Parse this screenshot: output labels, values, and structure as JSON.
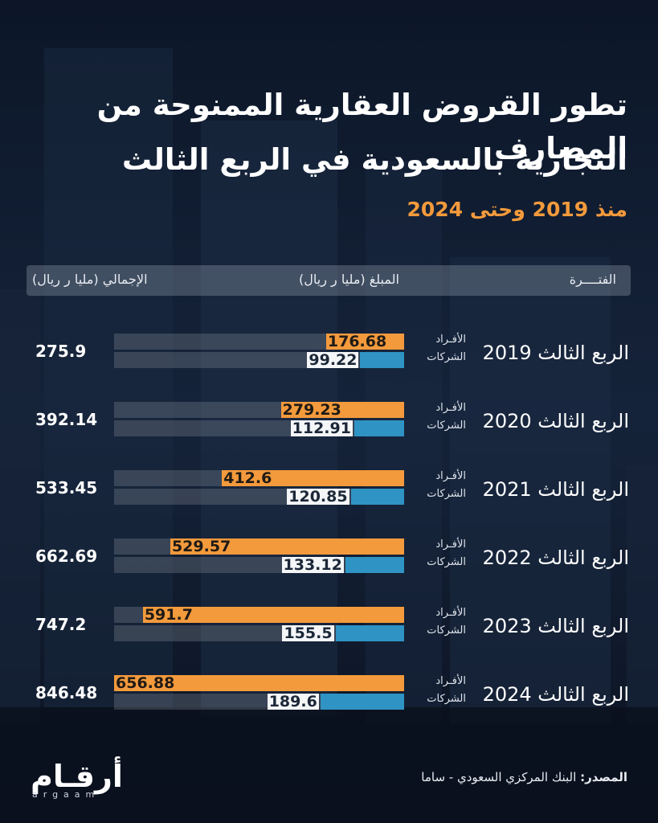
{
  "header": {
    "title_line1": "تطور القروض العقارية الممنوحة من المصارف",
    "title_line2": "التجارية بالسعودية في الربع الثالث",
    "subtitle": "منذ 2019 وحتى 2024"
  },
  "columns": {
    "period": "الفتــــرة",
    "amount": "المبلغ (مليا ر ريال)",
    "total": "الإجمالي (مليا ر ريال)"
  },
  "labels": {
    "individuals": "الأفـراد",
    "companies": "الشركات"
  },
  "rows": [
    {
      "period": "الربع الثالث 2019",
      "individuals": "176.68",
      "companies": "99.22",
      "total": "275.9"
    },
    {
      "period": "الربع الثالث 2020",
      "individuals": "279.23",
      "companies": "112.91",
      "total": "392.14"
    },
    {
      "period": "الربع الثالث 2021",
      "individuals": "412.6",
      "companies": "120.85",
      "total": "533.45"
    },
    {
      "period": "الربع الثالث 2022",
      "individuals": "529.57",
      "companies": "133.12",
      "total": "662.69"
    },
    {
      "period": "الربع الثالث 2023",
      "individuals": "591.7",
      "companies": "155.5",
      "total": "747.2"
    },
    {
      "period": "الربع الثالث 2024",
      "individuals": "656.88",
      "companies": "189.6",
      "total": "846.48"
    }
  ],
  "footer": {
    "source_label": "المصدر:",
    "source_text": "البنك المركزي السعودي - ساما",
    "logo_text": "أرقـام",
    "logo_sub": "argaam"
  },
  "colors": {
    "individuals": "#f39a3c",
    "companies": "#2f93c4",
    "background": "#0f1a2c"
  },
  "chart_data": {
    "type": "bar",
    "orientation": "horizontal",
    "categories": [
      "الربع الثالث 2019",
      "الربع الثالث 2020",
      "الربع الثالث 2021",
      "الربع الثالث 2022",
      "الربع الثالث 2023",
      "الربع الثالث 2024"
    ],
    "series": [
      {
        "name": "الأفـراد",
        "values": [
          176.68,
          279.23,
          412.6,
          529.57,
          591.7,
          656.88
        ]
      },
      {
        "name": "الشركات",
        "values": [
          99.22,
          112.91,
          120.85,
          133.12,
          155.5,
          189.6
        ]
      }
    ],
    "totals": [
      275.9,
      392.14,
      533.45,
      662.69,
      747.2,
      846.48
    ],
    "xlim": [
      0,
      656.88
    ],
    "grid": false
  }
}
